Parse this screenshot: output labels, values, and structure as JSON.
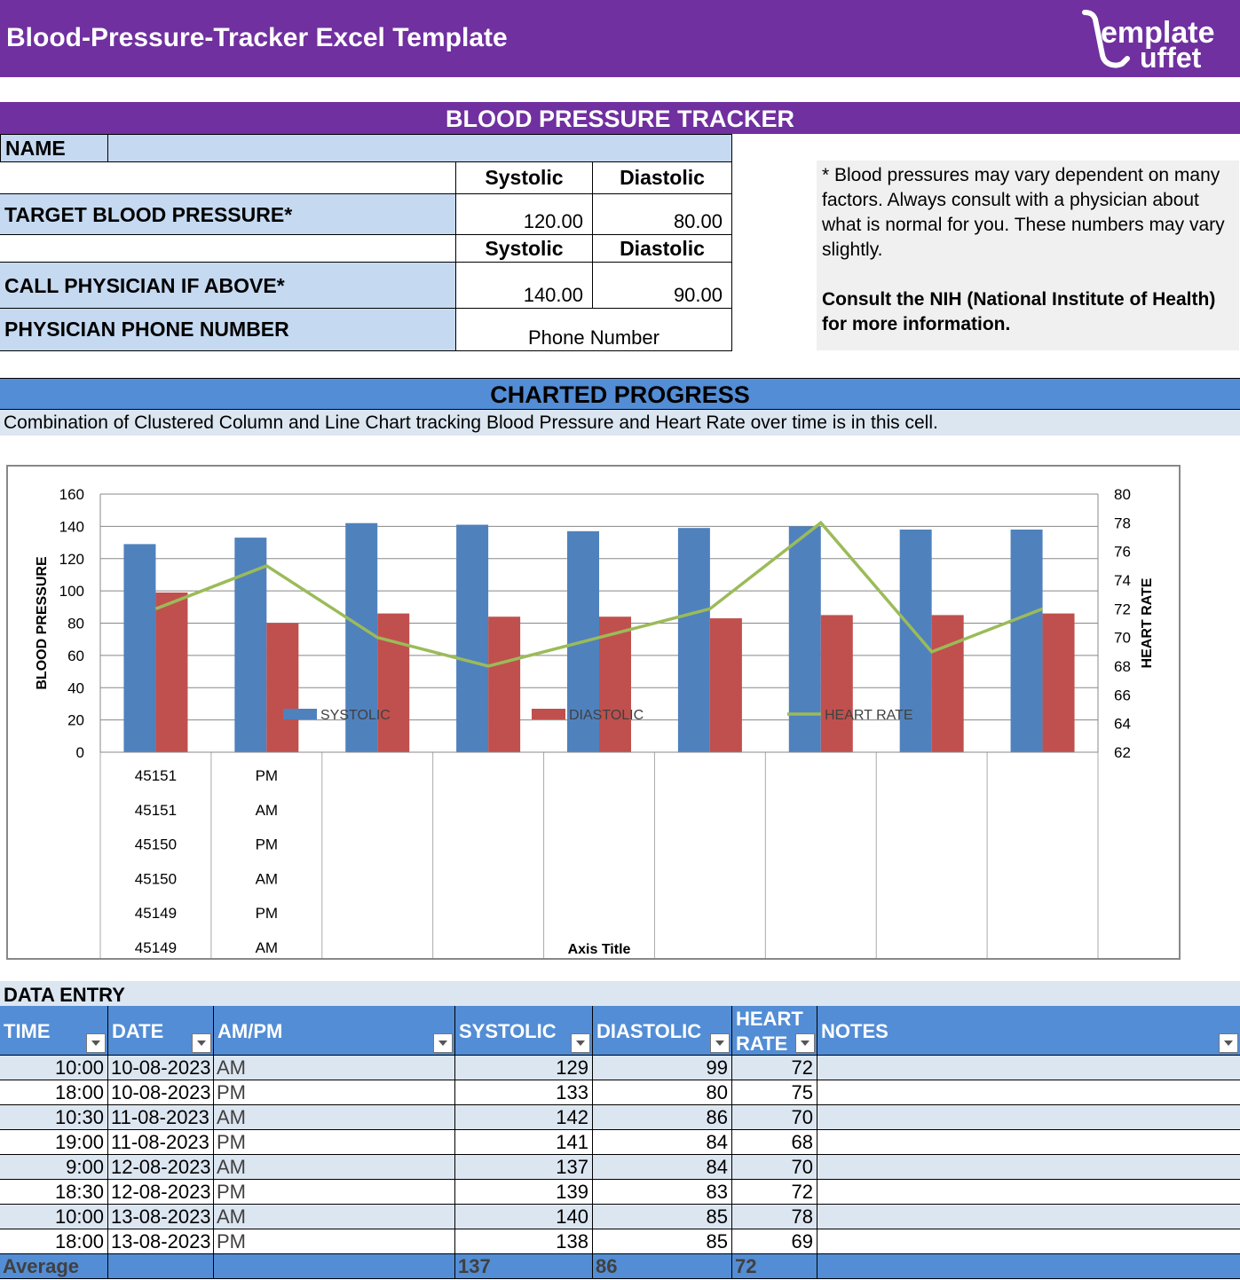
{
  "title_bar": {
    "title": "Blood-Pressure-Tracker Excel Template",
    "logo_text": "TemplateBuffet",
    "color": "#7030a0"
  },
  "tracker": {
    "header": "BLOOD PRESSURE TRACKER",
    "name_label": "NAME",
    "col_systolic": "Systolic",
    "col_diastolic": "Diastolic",
    "target_label": "TARGET BLOOD PRESSURE*",
    "target_systolic": "120.00",
    "target_diastolic": "80.00",
    "call_label": "CALL PHYSICIAN IF ABOVE*",
    "call_systolic": "140.00",
    "call_diastolic": "90.00",
    "phone_label": "PHYSICIAN PHONE NUMBER",
    "phone_value": "Phone Number"
  },
  "note": {
    "text": "* Blood pressures may vary dependent on many factors.  Always consult with a physician about what is normal for you. These numbers may vary slightly.",
    "bold": "Consult the NIH (National Institute of Health) for more information."
  },
  "charted": {
    "header": "CHARTED PROGRESS",
    "caption": "Combination of Clustered Column and Line Chart tracking Blood Pressure and Heart Rate over time is in this cell."
  },
  "chart_data": {
    "type": "bar",
    "title": "",
    "ylabel": "BLOOD PRESSURE",
    "y2label": "HEART RATE",
    "xlabel": "Axis Title",
    "ylim": [
      0,
      160
    ],
    "y_ticks": [
      "0",
      "20",
      "40",
      "60",
      "80",
      "100",
      "120",
      "140",
      "160"
    ],
    "y2lim": [
      62,
      80
    ],
    "y2_ticks": [
      "62",
      "64",
      "66",
      "68",
      "70",
      "72",
      "74",
      "76",
      "78",
      "80"
    ],
    "categories": [
      "",
      "",
      "",
      "",
      "",
      "",
      "",
      "",
      ""
    ],
    "series": [
      {
        "name": "SYSTOLIC",
        "type": "bar",
        "axis": "left",
        "color": "#4f81bd",
        "values": [
          129,
          133,
          142,
          141,
          137,
          139,
          140,
          138,
          138
        ]
      },
      {
        "name": "DIASTOLIC",
        "type": "bar",
        "axis": "left",
        "color": "#c0504d",
        "values": [
          99,
          80,
          86,
          84,
          84,
          83,
          85,
          85,
          86
        ]
      },
      {
        "name": "HEART RATE",
        "type": "line",
        "axis": "right",
        "color": "#9bbb59",
        "values": [
          72,
          75,
          70,
          68,
          70,
          72,
          78,
          69,
          72
        ]
      }
    ],
    "x_tick_col1": [
      "45151",
      "45151",
      "45150",
      "45150",
      "45149",
      "45149"
    ],
    "x_tick_col2": [
      "PM",
      "AM",
      "PM",
      "AM",
      "PM",
      "AM"
    ],
    "legend_placement": "inside-bottom",
    "grid": true
  },
  "data_entry": {
    "label": "DATA ENTRY",
    "headers": [
      "TIME",
      "DATE",
      "AM/PM",
      "SYSTOLIC",
      "DIASTOLIC",
      "HEART RATE",
      "NOTES"
    ],
    "heart_rate_line1": "HEART",
    "heart_rate_line2": "RATE",
    "rows": [
      [
        "10:00",
        "10-08-2023",
        "AM",
        "129",
        "99",
        "72",
        ""
      ],
      [
        "18:00",
        "10-08-2023",
        "PM",
        "133",
        "80",
        "75",
        ""
      ],
      [
        "10:30",
        "11-08-2023",
        "AM",
        "142",
        "86",
        "70",
        ""
      ],
      [
        "19:00",
        "11-08-2023",
        "PM",
        "141",
        "84",
        "68",
        ""
      ],
      [
        "9:00",
        "12-08-2023",
        "AM",
        "137",
        "84",
        "70",
        ""
      ],
      [
        "18:30",
        "12-08-2023",
        "PM",
        "139",
        "83",
        "72",
        ""
      ],
      [
        "10:00",
        "13-08-2023",
        "AM",
        "140",
        "85",
        "78",
        ""
      ],
      [
        "18:00",
        "13-08-2023",
        "PM",
        "138",
        "85",
        "69",
        ""
      ]
    ],
    "totals": {
      "label": "Average",
      "systolic": "137",
      "diastolic": "86",
      "heart_rate": "72"
    }
  }
}
